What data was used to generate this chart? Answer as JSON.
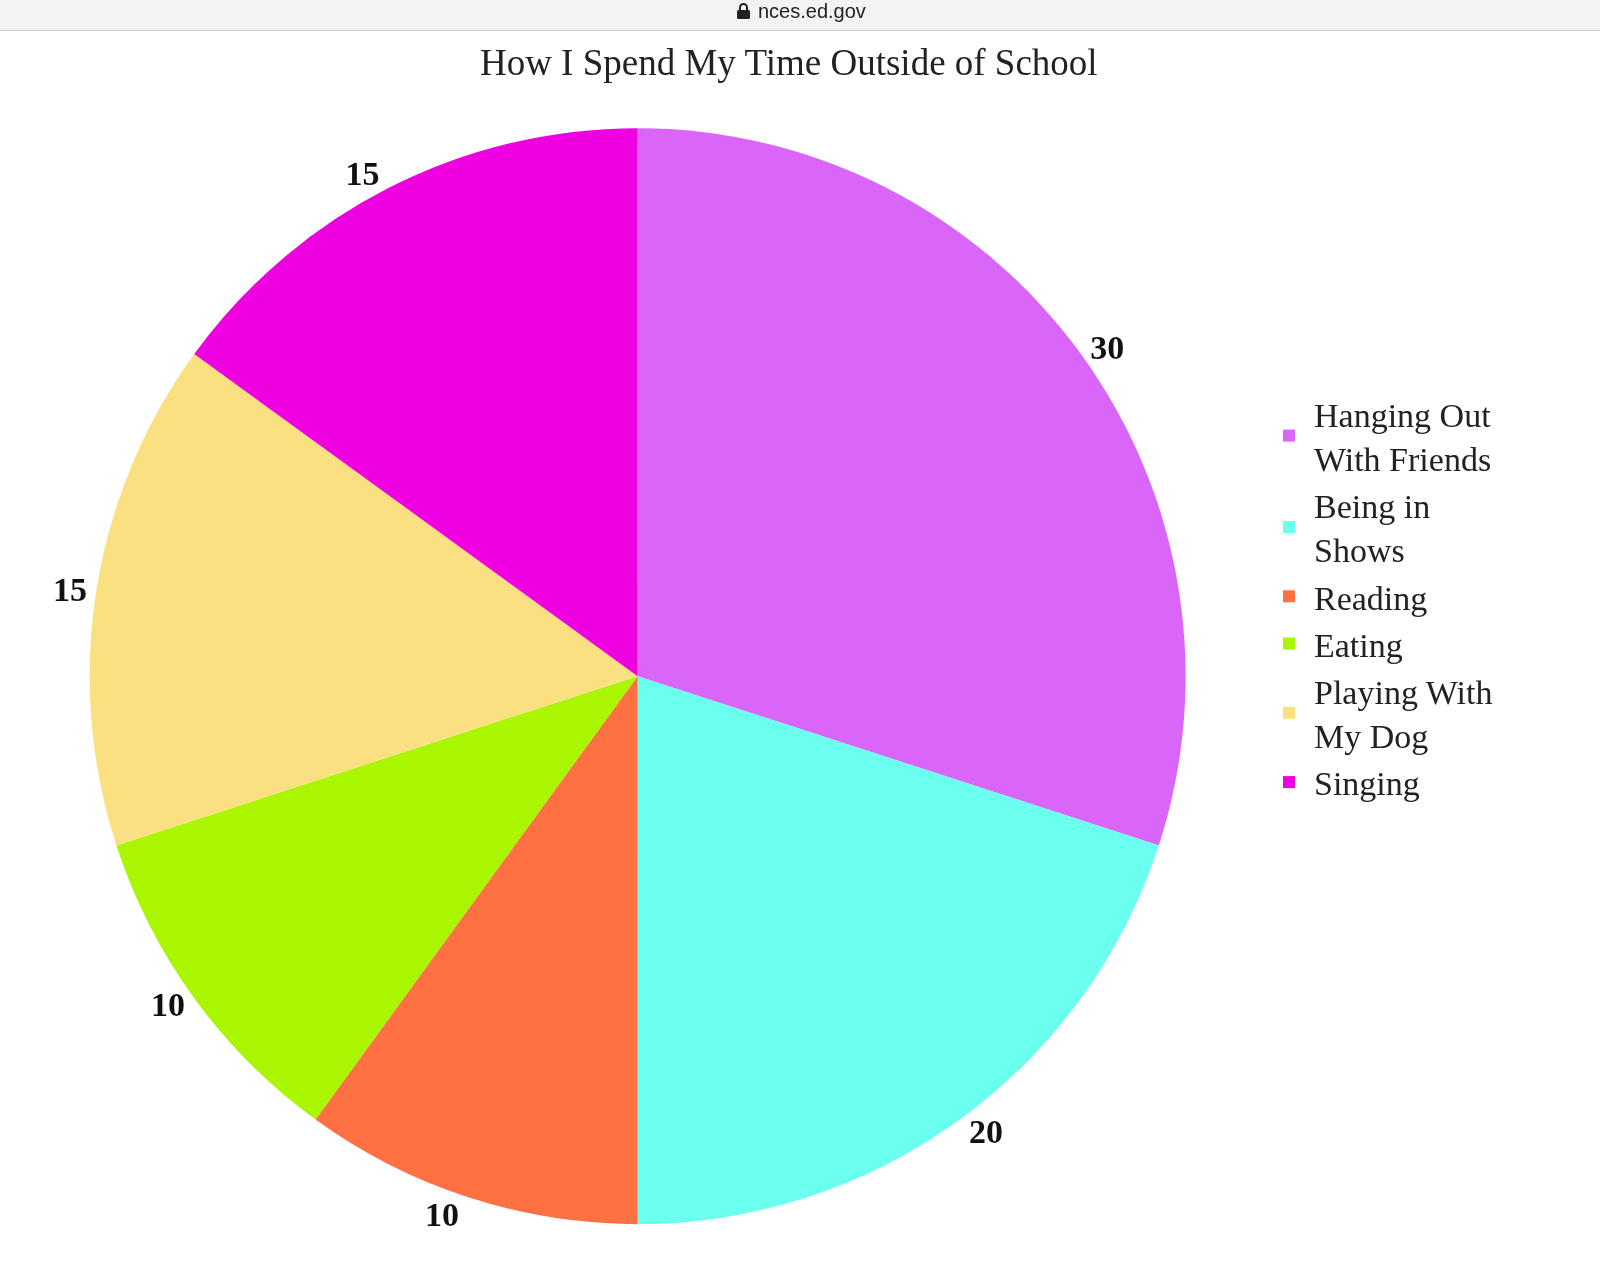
{
  "chart_data": {
    "type": "pie",
    "title": "How I Spend My Time Outside of School",
    "annotations": [
      "nces.ed.gov"
    ],
    "categories": [
      "Hanging Out With Friends",
      "Being in Shows",
      "Reading",
      "Eating",
      "Playing With My Dog",
      "Singing"
    ],
    "values": [
      30,
      20,
      10,
      10,
      15,
      15
    ],
    "colors": [
      "#d966f9",
      "#6bfff0",
      "#ff7043",
      "#aaf500",
      "#fbe081",
      "#ee00e0"
    ],
    "data_labels": true,
    "legend": "right"
  }
}
